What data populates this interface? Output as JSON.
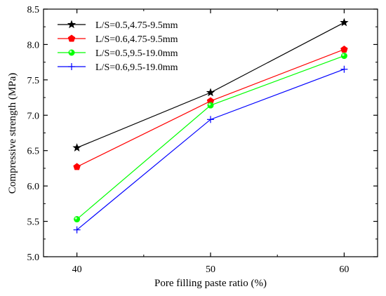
{
  "chart_data": {
    "type": "line",
    "title": "",
    "xlabel": "Pore filling paste ratio (%)",
    "ylabel": "Compressive strength (MPa)",
    "x": [
      40,
      50,
      60
    ],
    "xticks": [
      "40",
      "50",
      "60"
    ],
    "xlim": [
      37.5,
      62.5
    ],
    "ylim": [
      5.0,
      8.5
    ],
    "yticks": [
      "5.0",
      "5.5",
      "6.0",
      "6.5",
      "7.0",
      "7.5",
      "8.0",
      "8.5"
    ],
    "legend_position": "top-left",
    "grid": false,
    "series": [
      {
        "name": "L/S=0.5,4.75-9.5mm",
        "values": [
          6.54,
          7.32,
          8.31
        ],
        "color": "#000000",
        "marker": "star"
      },
      {
        "name": "L/S=0.6,4.75-9.5mm",
        "values": [
          6.27,
          7.2,
          7.93
        ],
        "color": "#ff0000",
        "marker": "pentagon"
      },
      {
        "name": "L/S=0.5,9.5-19.0mm",
        "values": [
          5.53,
          7.14,
          7.84
        ],
        "color": "#00ff00",
        "marker": "circle"
      },
      {
        "name": "L/S=0.6,9.5-19.0mm",
        "values": [
          5.38,
          6.94,
          7.65
        ],
        "color": "#0000ff",
        "marker": "plus"
      }
    ]
  }
}
